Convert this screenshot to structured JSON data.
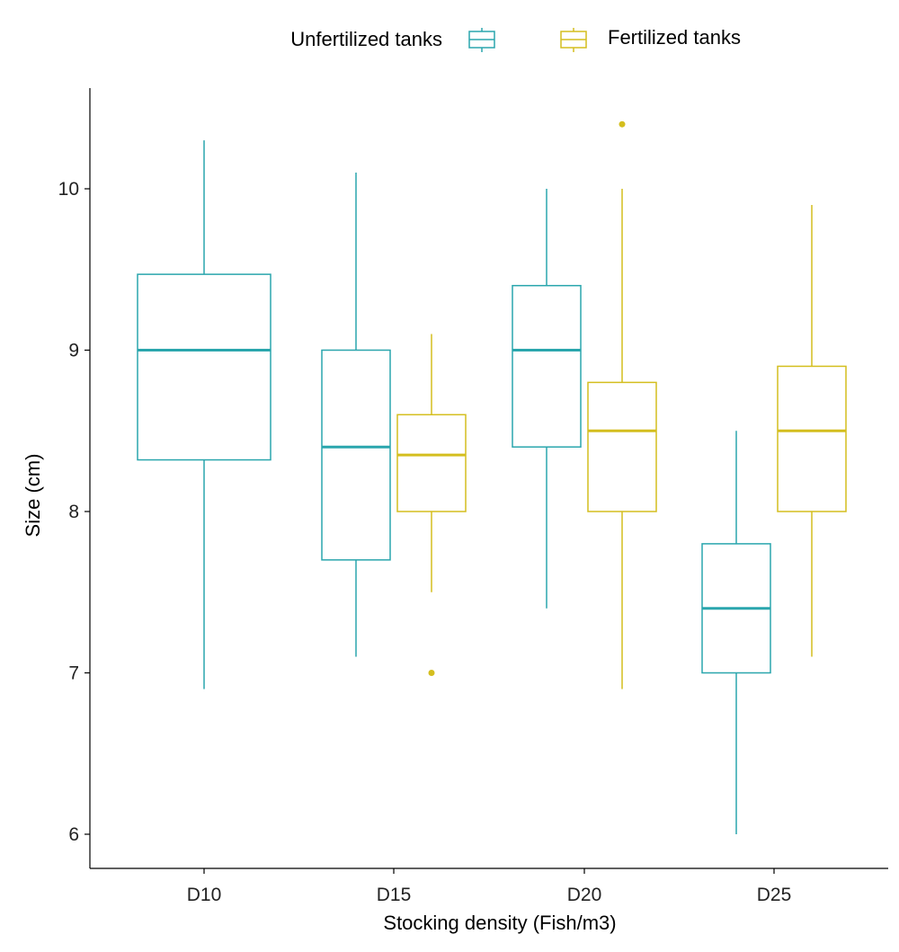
{
  "chart_data": {
    "type": "boxplot",
    "xlabel": "Stocking density (Fish/m3)",
    "ylabel": "Size (cm)",
    "ylim": [
      5.8,
      10.6
    ],
    "yticks": [
      "6",
      "7",
      "8",
      "9",
      "10"
    ],
    "categories": [
      "D10",
      "D15",
      "D20",
      "D25"
    ],
    "legend": {
      "position": "top",
      "entries": [
        "Unfertilized tanks",
        "Fertilized tanks"
      ]
    },
    "series": [
      {
        "name": "Unfertilized tanks",
        "color": "#2aa6ad",
        "boxes": [
          {
            "category": "D10",
            "min": 6.9,
            "q1": 8.32,
            "median": 9.0,
            "q3": 9.47,
            "max": 10.3,
            "outliers": []
          },
          {
            "category": "D15",
            "min": 7.1,
            "q1": 7.7,
            "median": 8.4,
            "q3": 9.0,
            "max": 10.1,
            "outliers": []
          },
          {
            "category": "D20",
            "min": 7.4,
            "q1": 8.4,
            "median": 9.0,
            "q3": 9.4,
            "max": 10.0,
            "outliers": []
          },
          {
            "category": "D25",
            "min": 6.0,
            "q1": 7.0,
            "median": 7.4,
            "q3": 7.8,
            "max": 8.5,
            "outliers": []
          }
        ]
      },
      {
        "name": "Fertilized tanks",
        "color": "#d4be1e",
        "boxes": [
          {
            "category": "D15",
            "min": 7.5,
            "q1": 8.0,
            "median": 8.35,
            "q3": 8.6,
            "max": 9.1,
            "outliers": [
              7.0
            ]
          },
          {
            "category": "D20",
            "min": 6.9,
            "q1": 8.0,
            "median": 8.5,
            "q3": 8.8,
            "max": 10.0,
            "outliers": [
              10.4
            ]
          },
          {
            "category": "D25",
            "min": 7.1,
            "q1": 8.0,
            "median": 8.5,
            "q3": 8.9,
            "max": 9.9,
            "outliers": []
          }
        ]
      }
    ]
  }
}
